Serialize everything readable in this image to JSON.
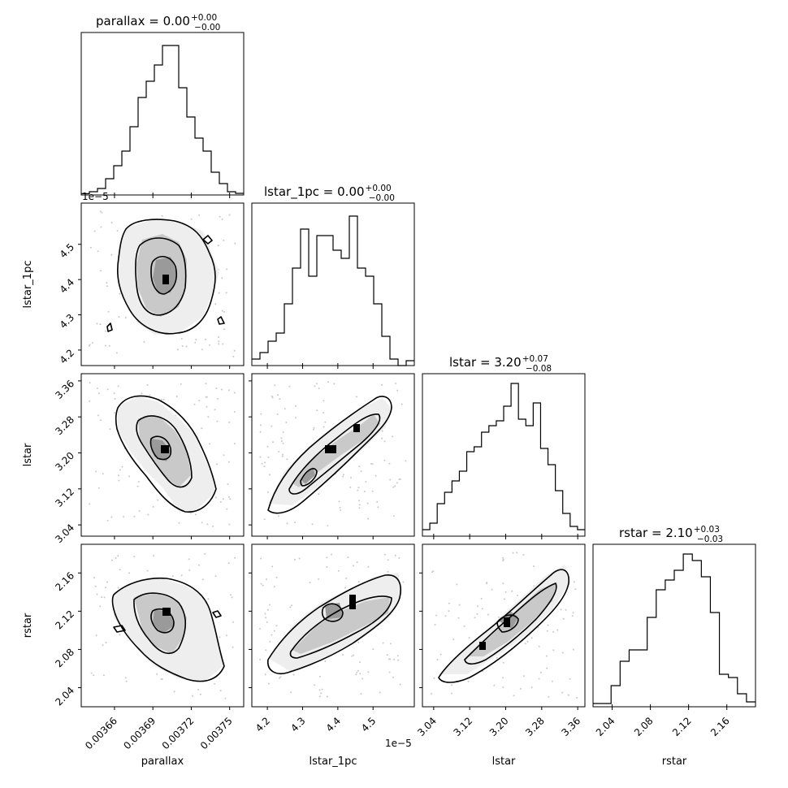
{
  "chart_data": {
    "type": "corner",
    "parameters": [
      "parallax",
      "lstar_1pc",
      "lstar",
      "rstar"
    ],
    "offset_labels": {
      "lstar_1pc_y": "1e−5",
      "lstar_1pc_x": "1e−5"
    },
    "titles": [
      {
        "param": "parallax",
        "median": "0.00",
        "plus": "+0.00",
        "minus": "−0.00",
        "text": "parallax = 0.00"
      },
      {
        "param": "lstar_1pc",
        "median": "0.00",
        "plus": "+0.00",
        "minus": "−0.00",
        "text": "lstar_1pc = 0.00"
      },
      {
        "param": "lstar",
        "median": "3.20",
        "plus": "+0.07",
        "minus": "−0.08",
        "text": "lstar = 3.20"
      },
      {
        "param": "rstar",
        "median": "2.10",
        "plus": "+0.03",
        "minus": "−0.03",
        "text": "rstar = 2.10"
      }
    ],
    "ranges": {
      "parallax": [
        0.003634,
        0.003761
      ],
      "lstar_1pc": [
        4.156,
        4.617
      ],
      "lstar": [
        3.015,
        3.376
      ],
      "rstar": [
        2.02,
        2.19
      ]
    },
    "ticks": {
      "parallax": {
        "values": [
          0.00366,
          0.00369,
          0.00372,
          0.00375
        ],
        "labels": [
          "0.00366",
          "0.00369",
          "0.00372",
          "0.00375"
        ]
      },
      "lstar_1pc": {
        "values": [
          4.2,
          4.3,
          4.4,
          4.5
        ],
        "labels": [
          "4.2",
          "4.3",
          "4.4",
          "4.5"
        ]
      },
      "lstar": {
        "values": [
          3.04,
          3.12,
          3.2,
          3.28,
          3.36
        ],
        "labels": [
          "3.04",
          "3.12",
          "3.20",
          "3.28",
          "3.36"
        ]
      },
      "rstar": {
        "values": [
          2.04,
          2.08,
          2.12,
          2.16
        ],
        "labels": [
          "2.04",
          "2.08",
          "2.12",
          "2.16"
        ]
      }
    },
    "histograms": {
      "parallax": [
        0.008,
        0.02,
        0.04,
        0.1,
        0.18,
        0.27,
        0.42,
        0.6,
        0.7,
        0.8,
        0.92,
        0.92,
        0.66,
        0.48,
        0.35,
        0.27,
        0.14,
        0.07,
        0.02,
        0.01
      ],
      "lstar_1pc": [
        0.04,
        0.08,
        0.15,
        0.2,
        0.38,
        0.6,
        0.84,
        0.55,
        0.8,
        0.8,
        0.71,
        0.66,
        0.92,
        0.6,
        0.55,
        0.38,
        0.18,
        0.04,
        0.0,
        0.03
      ],
      "lstar": [
        0.04,
        0.08,
        0.2,
        0.27,
        0.34,
        0.4,
        0.52,
        0.55,
        0.64,
        0.68,
        0.71,
        0.8,
        0.94,
        0.72,
        0.68,
        0.82,
        0.54,
        0.44,
        0.28,
        0.14,
        0.06,
        0.04
      ],
      "rstar": [
        0.02,
        0.02,
        0.13,
        0.28,
        0.35,
        0.35,
        0.55,
        0.72,
        0.78,
        0.84,
        0.94,
        0.9,
        0.8,
        0.58,
        0.2,
        0.18,
        0.08,
        0.03
      ]
    }
  }
}
